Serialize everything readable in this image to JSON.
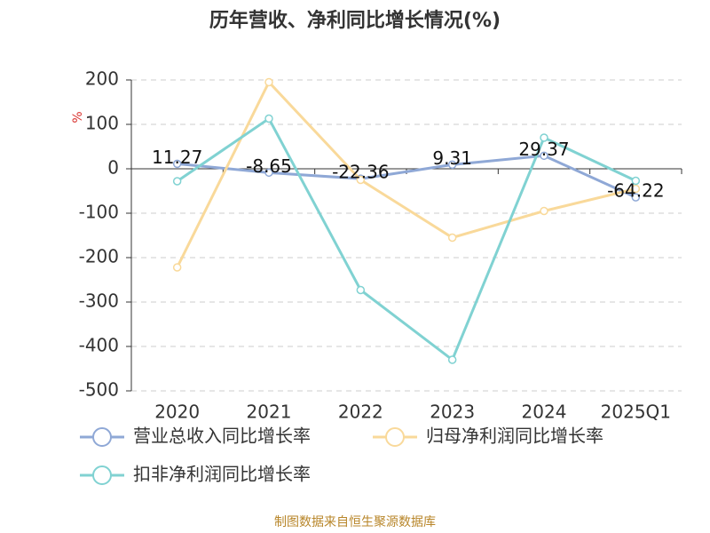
{
  "chart_data": {
    "type": "line",
    "title": "历年营收、净利同比增长情况(%)",
    "y_label": "%",
    "source": "制图数据来自恒生聚源数据库",
    "categories": [
      "2020",
      "2021",
      "2022",
      "2023",
      "2024",
      "2025Q1"
    ],
    "ylim": [
      -500,
      200
    ],
    "yticks": [
      -500,
      -400,
      -300,
      -200,
      -100,
      0,
      100,
      200
    ],
    "grid": true,
    "legend": "bottom",
    "series": [
      {
        "name": "营业总收入同比增长率",
        "color": "#8fa8d6",
        "values": [
          11.27,
          -8.65,
          -22.36,
          9.31,
          29.37,
          -64.22
        ],
        "show_labels": true
      },
      {
        "name": "归母净利润同比增长率",
        "color": "#f9d99a",
        "values": [
          -222,
          195,
          -25,
          -155,
          -95,
          -45
        ],
        "show_labels": false
      },
      {
        "name": "扣非净利润同比增长率",
        "color": "#80d2d2",
        "values": [
          -28,
          113,
          -273,
          -430,
          70,
          -27
        ],
        "show_labels": false
      }
    ]
  }
}
